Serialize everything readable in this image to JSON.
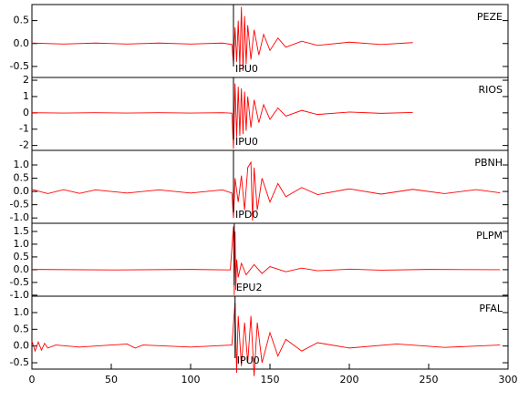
{
  "chart_data": [
    {
      "type": "line",
      "title": "PEZE",
      "color": "#ff0000",
      "xlim": [
        0,
        300
      ],
      "ylim": [
        -0.74,
        0.85
      ],
      "yticks": [
        0.5,
        {
          "value": 0,
          "label": "0.0"
        },
        -0.5
      ],
      "pick": {
        "x": 127,
        "label": "IPU0"
      },
      "x": [
        0,
        20,
        40,
        60,
        80,
        100,
        120,
        126,
        127,
        128,
        129,
        130,
        131,
        132,
        133,
        134,
        135,
        136,
        138,
        140,
        143,
        146,
        150,
        155,
        160,
        170,
        180,
        200,
        220,
        240
      ],
      "values": [
        0.01,
        -0.01,
        0.01,
        -0.01,
        0.01,
        -0.01,
        0.01,
        -0.02,
        -0.45,
        0.35,
        -0.4,
        0.5,
        -0.5,
        0.8,
        -0.6,
        0.6,
        -0.45,
        0.4,
        -0.35,
        0.3,
        -0.25,
        0.2,
        -0.15,
        0.12,
        -0.08,
        0.05,
        -0.04,
        0.03,
        -0.02,
        0.02
      ]
    },
    {
      "type": "line",
      "title": "RIOS",
      "color": "#ff0000",
      "xlim": [
        0,
        300
      ],
      "ylim": [
        -2.3,
        2.17
      ],
      "yticks": [
        2,
        1,
        0,
        -1,
        -2
      ],
      "pick": {
        "x": 127,
        "label": "IPU0"
      },
      "x": [
        0,
        20,
        40,
        60,
        80,
        100,
        120,
        126,
        127,
        128,
        129,
        130,
        131,
        132,
        133,
        134,
        135,
        136,
        138,
        140,
        143,
        146,
        150,
        155,
        160,
        170,
        180,
        200,
        220,
        240
      ],
      "values": [
        0.01,
        -0.01,
        0.01,
        -0.01,
        0.01,
        -0.01,
        0.01,
        -0.02,
        -2.2,
        1.8,
        -1.5,
        1.6,
        -1.4,
        1.5,
        -1.3,
        1.3,
        -1.1,
        1.0,
        -0.9,
        0.8,
        -0.6,
        0.5,
        -0.4,
        0.3,
        -0.2,
        0.15,
        -0.1,
        0.05,
        -0.03,
        0.02
      ]
    },
    {
      "type": "line",
      "title": "PBNH",
      "color": "#ff0000",
      "xlim": [
        0,
        300
      ],
      "ylim": [
        -1.2,
        1.55
      ],
      "yticks": [
        {
          "value": 1,
          "label": "1.0"
        },
        0.5,
        {
          "value": 0,
          "label": "0.0"
        },
        -0.5,
        {
          "value": -1,
          "label": "-1.0"
        }
      ],
      "pick": {
        "x": 127,
        "label": "IPD0"
      },
      "x": [
        0,
        10,
        20,
        30,
        40,
        60,
        80,
        100,
        120,
        126,
        127,
        128,
        130,
        132,
        134,
        136,
        138,
        139,
        140,
        142,
        145,
        150,
        155,
        160,
        170,
        180,
        200,
        220,
        240,
        260,
        280,
        295
      ],
      "values": [
        0.08,
        -0.08,
        0.07,
        -0.07,
        0.06,
        -0.06,
        0.06,
        -0.06,
        0.06,
        -0.06,
        -1.0,
        0.5,
        -0.4,
        0.6,
        -0.7,
        0.9,
        1.1,
        -1.1,
        0.9,
        -0.7,
        0.5,
        -0.4,
        0.3,
        -0.2,
        0.15,
        -0.12,
        0.1,
        -0.1,
        0.08,
        -0.08,
        0.07,
        -0.05
      ]
    },
    {
      "type": "line",
      "title": "PLPM",
      "color": "#ff0000",
      "xlim": [
        0,
        300
      ],
      "ylim": [
        -1.04,
        1.82
      ],
      "yticks": [
        1.5,
        {
          "value": 1,
          "label": "1.0"
        },
        0.5,
        {
          "value": 0,
          "label": "0.0"
        },
        -0.5,
        {
          "value": -1,
          "label": "-1.0"
        }
      ],
      "pick": {
        "x": 127.5,
        "label": "EPU2"
      },
      "x": [
        0,
        50,
        100,
        125,
        127,
        127.5,
        128,
        128.5,
        129,
        130,
        132,
        135,
        140,
        145,
        150,
        160,
        170,
        180,
        200,
        220,
        250,
        295
      ],
      "values": [
        0.01,
        -0.01,
        0.01,
        -0.01,
        1.7,
        -1.0,
        1.5,
        -0.8,
        0.4,
        -0.3,
        0.25,
        -0.2,
        0.2,
        -0.15,
        0.12,
        -0.08,
        0.06,
        -0.04,
        0.02,
        -0.02,
        0.01,
        0.0
      ]
    },
    {
      "type": "line",
      "title": "PFAL",
      "color": "#ff0000",
      "xlim": [
        0,
        300
      ],
      "ylim": [
        -0.69,
        1.49
      ],
      "yticks": [
        {
          "value": 1,
          "label": "1.0"
        },
        0.5,
        {
          "value": 0,
          "label": "0.0"
        },
        -0.5
      ],
      "xticks": [
        0,
        50,
        100,
        150,
        200,
        250,
        300
      ],
      "pick": {
        "x": 128,
        "label": "IPU0"
      },
      "x": [
        0,
        2,
        4,
        6,
        8,
        10,
        15,
        30,
        60,
        65,
        70,
        100,
        126,
        128,
        129,
        130,
        132,
        134,
        136,
        138,
        140,
        142,
        145,
        150,
        155,
        160,
        170,
        180,
        200,
        230,
        260,
        295
      ],
      "values": [
        0.15,
        -0.15,
        0.12,
        -0.12,
        0.08,
        -0.06,
        0.03,
        -0.03,
        0.06,
        -0.06,
        0.03,
        -0.03,
        0.03,
        1.3,
        -0.8,
        0.9,
        -0.6,
        0.7,
        -0.5,
        0.9,
        -0.9,
        0.7,
        -0.5,
        0.4,
        -0.3,
        0.2,
        -0.15,
        0.1,
        -0.06,
        0.06,
        -0.04,
        0.03
      ]
    }
  ]
}
